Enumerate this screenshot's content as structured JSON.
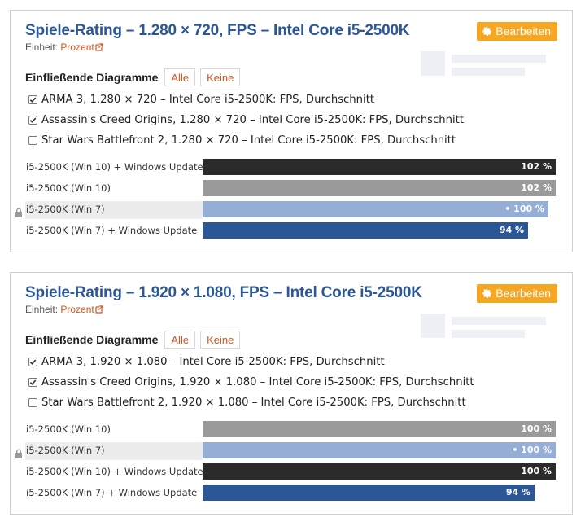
{
  "panels": [
    {
      "title": "Spiele-Rating – 1.280 × 720, FPS – Intel Core i5-2500K",
      "edit_label": "Bearbeiten",
      "unit_label": "Einheit:",
      "unit_value": "Prozent",
      "included_label": "Einfließende Diagramme",
      "all_label": "Alle",
      "none_label": "Keine",
      "checkboxes": [
        {
          "label": "ARMA 3, 1.280 × 720 – Intel Core i5-2500K: FPS, Durchschnitt",
          "checked": true
        },
        {
          "label": "Assassin's Creed Origins, 1.280 × 720 – Intel Core i5-2500K: FPS, Durchschnitt",
          "checked": true
        },
        {
          "label": "Star Wars Battlefront 2, 1.280 × 720 – Intel Core i5-2500K: FPS, Durchschnitt",
          "checked": false
        }
      ],
      "chart_data": {
        "type": "bar",
        "orientation": "horizontal",
        "unit": "Prozent",
        "xlim": [
          0,
          102
        ],
        "bars": [
          {
            "label": "i5-2500K (Win 10) + Windows Update",
            "value": 102,
            "value_text": "102 %",
            "color": "#2b2b2b",
            "reference": false
          },
          {
            "label": "i5-2500K (Win 10)",
            "value": 102,
            "value_text": "102 %",
            "color": "#9a9a9a",
            "reference": false
          },
          {
            "label": "i5-2500K (Win 7)",
            "value": 100,
            "value_text": "• 100 %",
            "color": "#95aed6",
            "reference": true
          },
          {
            "label": "i5-2500K (Win 7) + Windows Update",
            "value": 94,
            "value_text": "94 %",
            "color": "#2b5797",
            "reference": false
          }
        ]
      }
    },
    {
      "title": "Spiele-Rating – 1.920 × 1.080, FPS – Intel Core i5-2500K",
      "edit_label": "Bearbeiten",
      "unit_label": "Einheit:",
      "unit_value": "Prozent",
      "included_label": "Einfließende Diagramme",
      "all_label": "Alle",
      "none_label": "Keine",
      "checkboxes": [
        {
          "label": "ARMA 3, 1.920 × 1.080 – Intel Core i5-2500K: FPS, Durchschnitt",
          "checked": true
        },
        {
          "label": "Assassin's Creed Origins, 1.920 × 1.080 – Intel Core i5-2500K: FPS, Durchschnitt",
          "checked": true
        },
        {
          "label": "Star Wars Battlefront 2, 1.920 × 1.080 – Intel Core i5-2500K: FPS, Durchschnitt",
          "checked": false
        }
      ],
      "chart_data": {
        "type": "bar",
        "orientation": "horizontal",
        "unit": "Prozent",
        "xlim": [
          0,
          100
        ],
        "bars": [
          {
            "label": "i5-2500K (Win 10)",
            "value": 100,
            "value_text": "100 %",
            "color": "#9a9a9a",
            "reference": false
          },
          {
            "label": "i5-2500K (Win 7)",
            "value": 100,
            "value_text": "• 100 %",
            "color": "#95aed6",
            "reference": true
          },
          {
            "label": "i5-2500K (Win 10) + Windows Update",
            "value": 100,
            "value_text": "100 %",
            "color": "#2b2b2b",
            "reference": false
          },
          {
            "label": "i5-2500K (Win 7) + Windows Update",
            "value": 94,
            "value_text": "94 %",
            "color": "#2b5797",
            "reference": false
          }
        ]
      }
    }
  ],
  "colors": {
    "title": "#2b5797",
    "accent": "#f5a623",
    "link": "#d9531e"
  }
}
